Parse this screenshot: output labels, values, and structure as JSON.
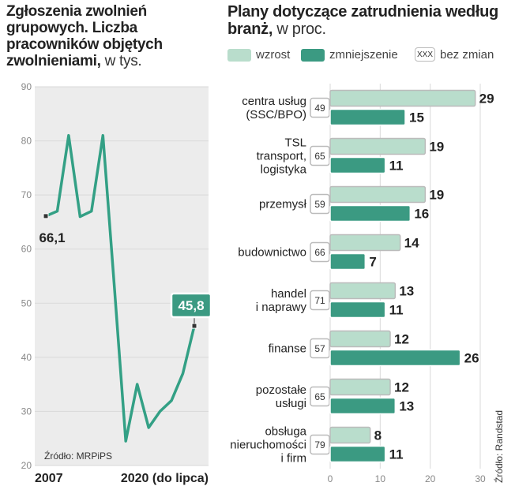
{
  "colors": {
    "increase": "#b9ddcc",
    "decrease": "#3b9a82",
    "line": "#33a085",
    "panel_bg": "#ececec",
    "grid": "#d9d9d9"
  },
  "left": {
    "title": "Zgłoszenia zwolnień grupowych. Liczba pracowników objętych zwolnieniami,",
    "unit": "w tys.",
    "source": "Źródło: MRPiPS"
  },
  "right": {
    "title": "Plany dotyczące zatrudnienia według branż,",
    "unit": "w proc.",
    "source": "Źródło: Randstad",
    "legend": {
      "increase": "wzrost",
      "decrease": "zmniejszenie",
      "nochange_box": "XXX",
      "nochange": "bez zmian"
    }
  },
  "chart_data": [
    {
      "type": "line",
      "title": "Zgłoszenia zwolnień grupowych. Liczba pracowników objętych zwolnieniami, w tys.",
      "x": [
        2007,
        2008,
        2009,
        2010,
        2011,
        2012,
        2013,
        2014,
        2015,
        2016,
        2017,
        2018,
        2019,
        2020
      ],
      "values": [
        66.1,
        67,
        81,
        66,
        67,
        81,
        53,
        24.5,
        35,
        27,
        30,
        32,
        37,
        45.8
      ],
      "x_tick_labels": [
        "2007",
        "2020 (do lipca)"
      ],
      "ylim": [
        20,
        90
      ],
      "yticks": [
        20,
        30,
        40,
        50,
        60,
        70,
        80,
        90
      ],
      "annotations": [
        {
          "label": "66,1",
          "x": 2007
        },
        {
          "label": "45,8",
          "x": 2020
        }
      ],
      "grid": true,
      "source": "Źródło: MRPiPS"
    },
    {
      "type": "bar",
      "orientation": "horizontal",
      "title": "Plany dotyczące zatrudnienia według branż, w proc.",
      "categories": [
        [
          "centra usług",
          "(SSC/BPO)"
        ],
        [
          "TSL",
          "transport,",
          "logistyka"
        ],
        [
          "przemysł"
        ],
        [
          "budownictwo"
        ],
        [
          "handel",
          "i naprawy"
        ],
        [
          "finanse"
        ],
        [
          "pozostałe",
          "usługi"
        ],
        [
          "obsługa",
          "nieruchomości",
          "i firm"
        ]
      ],
      "series": [
        {
          "name": "wzrost",
          "values": [
            29,
            19,
            19,
            14,
            13,
            12,
            12,
            8
          ]
        },
        {
          "name": "zmniejszenie",
          "values": [
            15,
            11,
            16,
            7,
            11,
            26,
            13,
            11
          ]
        },
        {
          "name": "bez zmian",
          "values": [
            49,
            65,
            59,
            66,
            71,
            57,
            65,
            79
          ]
        }
      ],
      "xlim": [
        0,
        30
      ],
      "xticks": [
        0,
        10,
        20,
        30
      ],
      "legend": "top",
      "source": "Źródło: Randstad"
    }
  ]
}
